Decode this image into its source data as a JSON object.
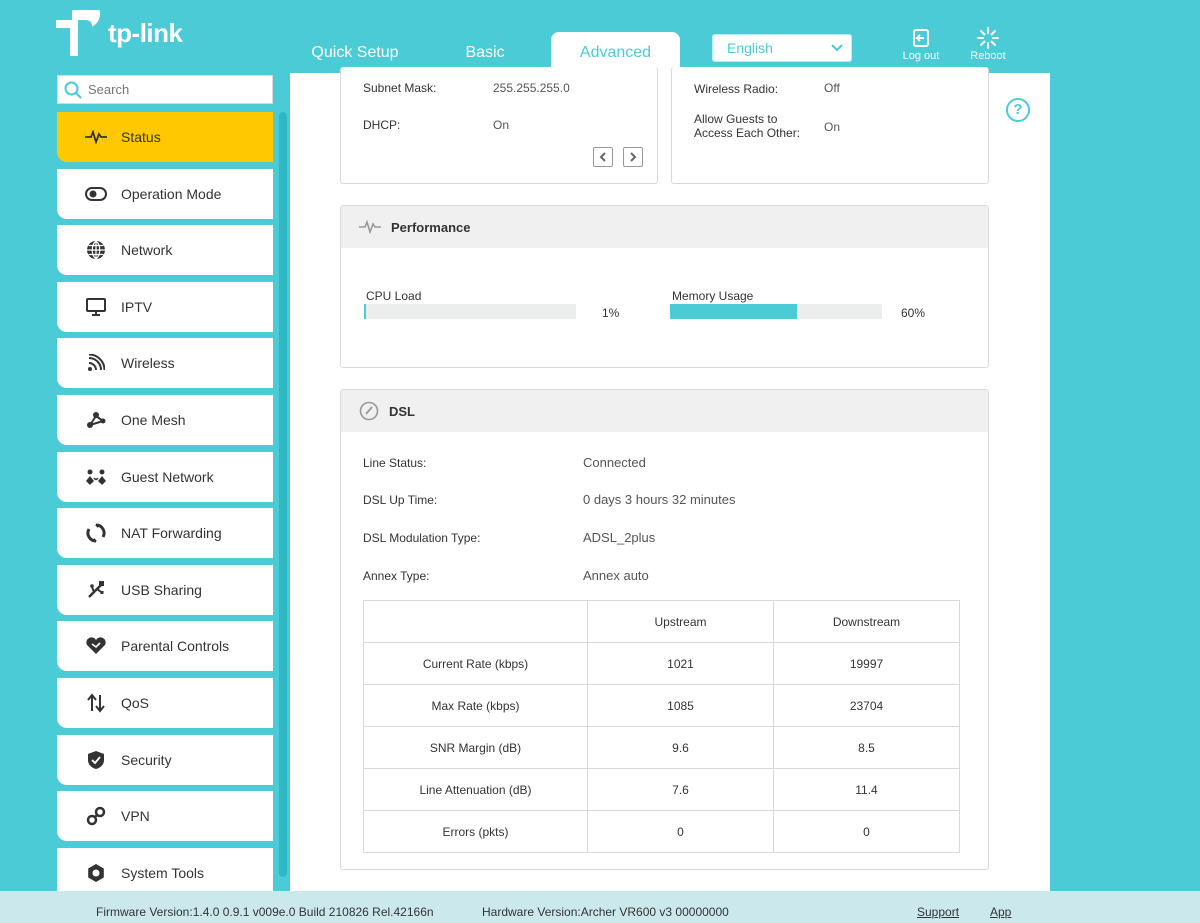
{
  "brand": {
    "logo_text": "tp-link"
  },
  "nav": {
    "tabs": [
      {
        "label": "Quick Setup"
      },
      {
        "label": "Basic"
      },
      {
        "label": "Advanced",
        "active": true
      }
    ],
    "language": "English",
    "logout_label": "Log out",
    "reboot_label": "Reboot"
  },
  "search": {
    "placeholder": "Search"
  },
  "sidebar": {
    "items": [
      {
        "label": "Status",
        "icon": "pulse-icon",
        "active": true
      },
      {
        "label": "Operation Mode",
        "icon": "toggle-icon"
      },
      {
        "label": "Network",
        "icon": "globe-icon"
      },
      {
        "label": "IPTV",
        "icon": "monitor-icon"
      },
      {
        "label": "Wireless",
        "icon": "wifi-icon"
      },
      {
        "label": "One Mesh",
        "icon": "mesh-icon"
      },
      {
        "label": "Guest Network",
        "icon": "guests-icon"
      },
      {
        "label": "NAT Forwarding",
        "icon": "nat-icon"
      },
      {
        "label": "USB Sharing",
        "icon": "usb-icon"
      },
      {
        "label": "Parental Controls",
        "icon": "heart-icon"
      },
      {
        "label": "QoS",
        "icon": "updown-arrows-icon"
      },
      {
        "label": "Security",
        "icon": "shield-icon"
      },
      {
        "label": "VPN",
        "icon": "link-icon"
      },
      {
        "label": "System Tools",
        "icon": "gear-icon"
      }
    ]
  },
  "top_left_card": {
    "subnet_label": "Subnet Mask:",
    "subnet_value": "255.255.255.0",
    "dhcp_label": "DHCP:",
    "dhcp_value": "On"
  },
  "top_right_card": {
    "wireless_radio_label": "Wireless Radio:",
    "wireless_radio_value": "Off",
    "allow_guests_label_1": "Allow Guests to",
    "allow_guests_label_2": "Access Each Other:",
    "allow_guests_value": "On"
  },
  "performance": {
    "title": "Performance",
    "cpu_label": "CPU Load",
    "cpu_percent": 1,
    "cpu_text": "1%",
    "memory_label": "Memory Usage",
    "memory_percent": 60,
    "memory_text": "60%"
  },
  "dsl": {
    "title": "DSL",
    "line_status_label": "Line Status:",
    "line_status_value": "Connected",
    "up_time_label": "DSL Up Time:",
    "up_time_value": "0 days 3 hours 32 minutes",
    "modulation_label": "DSL Modulation Type:",
    "modulation_value": "ADSL_2plus",
    "annex_label": "Annex Type:",
    "annex_value": "Annex auto",
    "table": {
      "headers": [
        "",
        "Upstream",
        "Downstream"
      ],
      "rows": [
        [
          "Current Rate (kbps)",
          "1021",
          "19997"
        ],
        [
          "Max Rate (kbps)",
          "1085",
          "23704"
        ],
        [
          "SNR Margin (dB)",
          "9.6",
          "8.5"
        ],
        [
          "Line Attenuation (dB)",
          "7.6",
          "11.4"
        ],
        [
          "Errors (pkts)",
          "0",
          "0"
        ]
      ]
    }
  },
  "footer": {
    "firmware": "Firmware Version:1.4.0 0.9.1 v009e.0 Build 210826 Rel.42166n",
    "hardware": "Hardware Version:Archer VR600 v3 00000000",
    "support": "Support",
    "app": "App"
  },
  "colors": {
    "accent": "#4acbd6",
    "active_item": "#ffc800"
  }
}
